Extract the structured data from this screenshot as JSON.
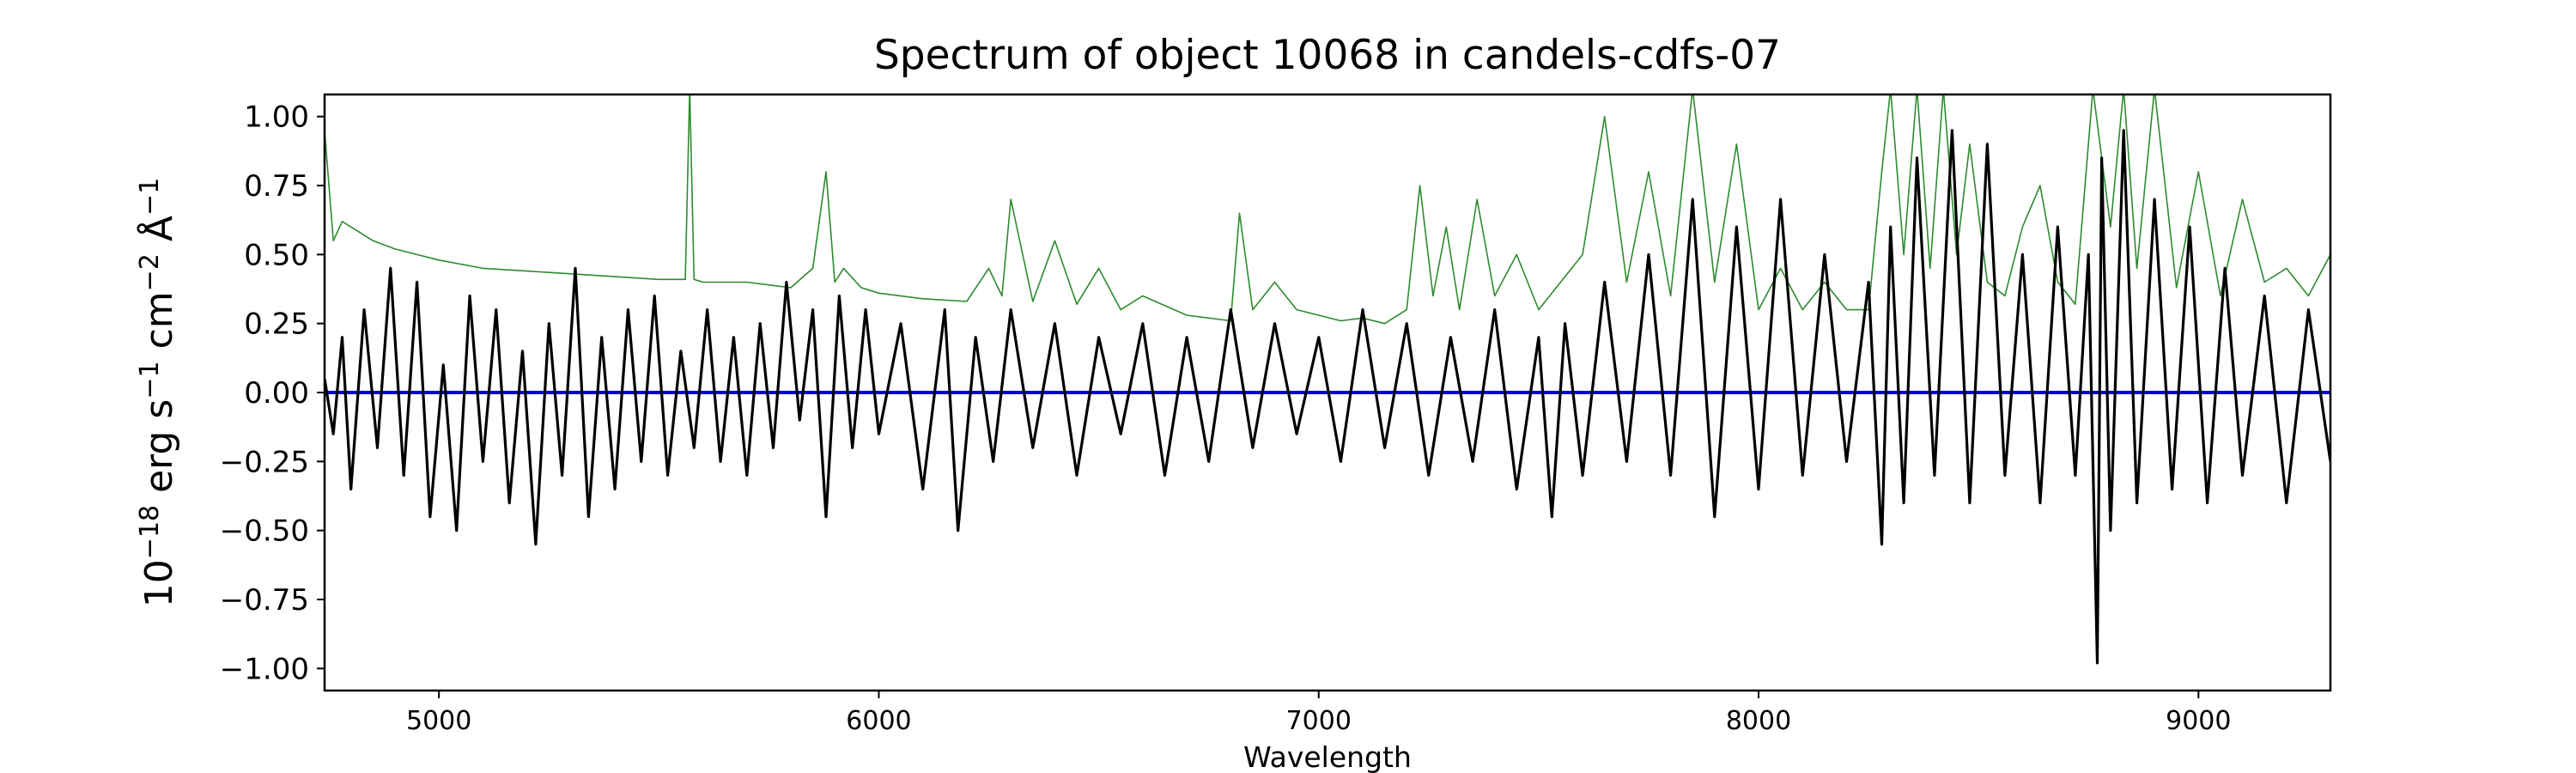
{
  "chart_data": {
    "type": "line",
    "title": "Spectrum of object 10068 in candels-cdfs-07",
    "xlabel": "Wavelength",
    "ylabel": {
      "base": "10",
      "exp1": "−18",
      "erg": " erg s",
      "exp2": "−1",
      "cm": " cm",
      "exp3": "−2",
      "ang": " Å",
      "exp4": "−1"
    },
    "xlim": [
      4740,
      9300
    ],
    "ylim": [
      -1.08,
      1.08
    ],
    "x_ticks": [
      5000,
      6000,
      7000,
      8000,
      9000
    ],
    "x_tick_labels": [
      "5000",
      "6000",
      "7000",
      "8000",
      "9000"
    ],
    "y_ticks": [
      1.0,
      0.75,
      0.5,
      0.25,
      0.0,
      -0.25,
      -0.5,
      -0.75,
      -1.0
    ],
    "y_tick_labels": [
      "1.00",
      "0.75",
      "0.50",
      "0.25",
      "0.00",
      "−0.25",
      "−0.50",
      "−0.75",
      "−1.00"
    ],
    "grid": false,
    "legend": "none",
    "colors": {
      "flux": "#000000",
      "error": "#2e8b2e",
      "zero": "#0000cc"
    },
    "series": [
      {
        "role": "flux",
        "x": [
          4740,
          4760,
          4780,
          4800,
          4830,
          4860,
          4890,
          4920,
          4950,
          4980,
          5010,
          5040,
          5070,
          5100,
          5130,
          5160,
          5190,
          5220,
          5250,
          5280,
          5310,
          5340,
          5370,
          5400,
          5430,
          5460,
          5490,
          5520,
          5550,
          5580,
          5610,
          5640,
          5670,
          5700,
          5730,
          5760,
          5790,
          5820,
          5850,
          5880,
          5910,
          5940,
          5970,
          6000,
          6050,
          6100,
          6150,
          6180,
          6220,
          6260,
          6300,
          6350,
          6400,
          6450,
          6500,
          6550,
          6600,
          6650,
          6700,
          6750,
          6800,
          6850,
          6900,
          6950,
          7000,
          7050,
          7100,
          7150,
          7200,
          7250,
          7300,
          7350,
          7400,
          7450,
          7500,
          7530,
          7560,
          7600,
          7650,
          7700,
          7750,
          7800,
          7850,
          7900,
          7950,
          8000,
          8050,
          8100,
          8150,
          8200,
          8250,
          8280,
          8300,
          8330,
          8360,
          8400,
          8440,
          8480,
          8520,
          8560,
          8600,
          8640,
          8680,
          8720,
          8750,
          8770,
          8780,
          8800,
          8830,
          8860,
          8900,
          8940,
          8980,
          9020,
          9060,
          9100,
          9150,
          9200,
          9250,
          9300
        ],
        "y": [
          0.05,
          -0.15,
          0.2,
          -0.35,
          0.3,
          -0.2,
          0.45,
          -0.3,
          0.4,
          -0.45,
          0.1,
          -0.5,
          0.35,
          -0.25,
          0.3,
          -0.4,
          0.15,
          -0.55,
          0.25,
          -0.3,
          0.45,
          -0.45,
          0.2,
          -0.35,
          0.3,
          -0.25,
          0.35,
          -0.3,
          0.15,
          -0.2,
          0.3,
          -0.25,
          0.2,
          -0.3,
          0.25,
          -0.2,
          0.4,
          -0.1,
          0.3,
          -0.45,
          0.35,
          -0.2,
          0.3,
          -0.15,
          0.25,
          -0.35,
          0.3,
          -0.5,
          0.2,
          -0.25,
          0.3,
          -0.2,
          0.25,
          -0.3,
          0.2,
          -0.15,
          0.25,
          -0.3,
          0.2,
          -0.25,
          0.3,
          -0.2,
          0.25,
          -0.15,
          0.2,
          -0.25,
          0.3,
          -0.2,
          0.25,
          -0.3,
          0.2,
          -0.25,
          0.3,
          -0.35,
          0.2,
          -0.45,
          0.25,
          -0.3,
          0.4,
          -0.25,
          0.5,
          -0.3,
          0.7,
          -0.45,
          0.6,
          -0.35,
          0.7,
          -0.3,
          0.5,
          -0.25,
          0.4,
          -0.55,
          0.6,
          -0.4,
          0.85,
          -0.3,
          0.95,
          -0.4,
          0.9,
          -0.3,
          0.5,
          -0.4,
          0.6,
          -0.3,
          0.5,
          -0.98,
          0.85,
          -0.5,
          0.95,
          -0.4,
          0.7,
          -0.35,
          0.6,
          -0.4,
          0.45,
          -0.3,
          0.35,
          -0.4,
          0.3,
          -0.25
        ]
      },
      {
        "role": "error",
        "x": [
          4740,
          4760,
          4780,
          4800,
          4850,
          4900,
          4950,
          5000,
          5100,
          5200,
          5300,
          5400,
          5500,
          5560,
          5570,
          5580,
          5600,
          5700,
          5800,
          5850,
          5880,
          5900,
          5920,
          5960,
          6000,
          6100,
          6200,
          6250,
          6280,
          6300,
          6350,
          6400,
          6450,
          6500,
          6550,
          6600,
          6700,
          6800,
          6820,
          6850,
          6900,
          6950,
          7000,
          7050,
          7100,
          7150,
          7200,
          7230,
          7260,
          7290,
          7320,
          7360,
          7400,
          7450,
          7500,
          7550,
          7600,
          7650,
          7700,
          7750,
          7800,
          7850,
          7900,
          7950,
          8000,
          8050,
          8100,
          8150,
          8200,
          8250,
          8280,
          8300,
          8330,
          8360,
          8390,
          8420,
          8450,
          8480,
          8520,
          8560,
          8600,
          8640,
          8680,
          8720,
          8760,
          8800,
          8830,
          8860,
          8900,
          8950,
          9000,
          9050,
          9100,
          9150,
          9200,
          9250,
          9300
        ],
        "y": [
          0.95,
          0.55,
          0.62,
          0.6,
          0.55,
          0.52,
          0.5,
          0.48,
          0.45,
          0.44,
          0.43,
          0.42,
          0.41,
          0.41,
          1.1,
          0.41,
          0.4,
          0.4,
          0.38,
          0.45,
          0.8,
          0.4,
          0.45,
          0.38,
          0.36,
          0.34,
          0.33,
          0.45,
          0.35,
          0.7,
          0.33,
          0.55,
          0.32,
          0.45,
          0.3,
          0.35,
          0.28,
          0.26,
          0.65,
          0.3,
          0.4,
          0.3,
          0.28,
          0.26,
          0.27,
          0.25,
          0.3,
          0.75,
          0.35,
          0.6,
          0.3,
          0.7,
          0.35,
          0.5,
          0.3,
          0.4,
          0.5,
          1.0,
          0.4,
          0.8,
          0.35,
          1.1,
          0.4,
          0.9,
          0.3,
          0.45,
          0.3,
          0.4,
          0.3,
          0.3,
          0.8,
          1.1,
          0.5,
          1.1,
          0.45,
          1.1,
          0.5,
          0.9,
          0.4,
          0.35,
          0.6,
          0.75,
          0.4,
          0.32,
          1.1,
          0.6,
          1.1,
          0.45,
          1.1,
          0.38,
          0.8,
          0.35,
          0.7,
          0.4,
          0.45,
          0.35,
          0.5
        ]
      },
      {
        "role": "zero",
        "x": [
          4740,
          9300
        ],
        "y": [
          0.0,
          0.0
        ]
      }
    ]
  }
}
